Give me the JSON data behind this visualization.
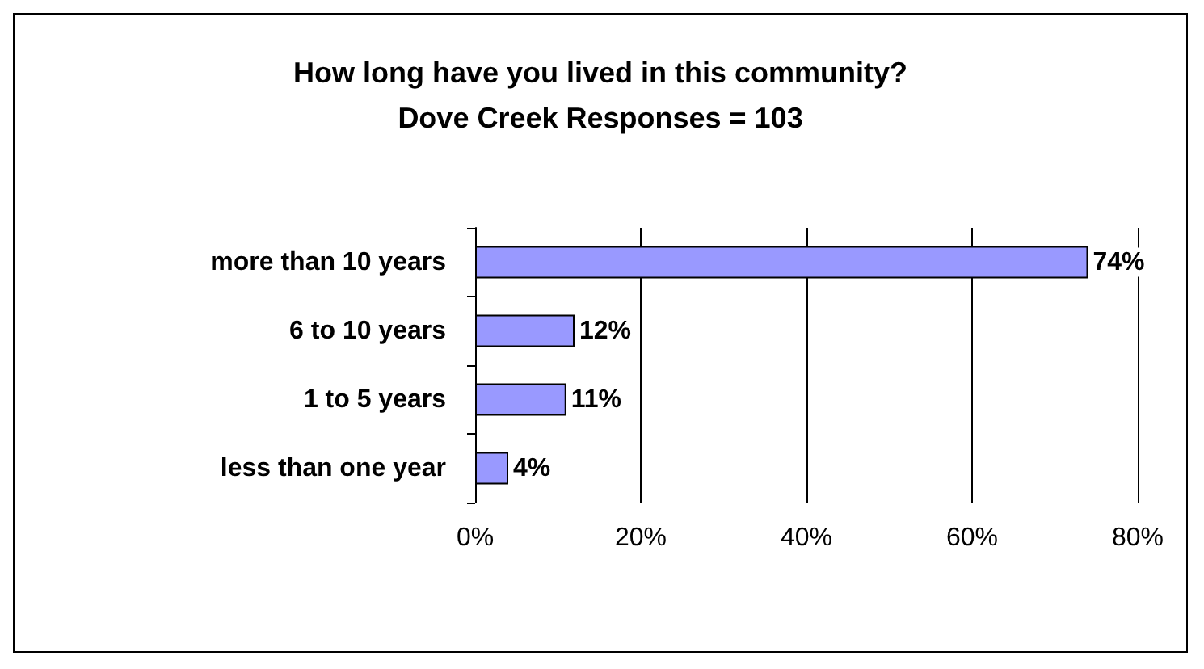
{
  "chart_data": {
    "type": "bar",
    "orientation": "horizontal",
    "title": "How long have you lived in this community?",
    "subtitle": "Dove Creek Responses = 103",
    "categories": [
      "more than 10 years",
      "6 to 10 years",
      "1 to 5 years",
      "less than one year"
    ],
    "values": [
      74,
      12,
      11,
      4
    ],
    "color": "#9999ff",
    "value_labels": [
      "74%",
      "12%",
      "11%",
      "4%"
    ],
    "xlim": [
      0,
      80
    ],
    "xticks": [
      {
        "value": 0,
        "label": "0%"
      },
      {
        "value": 20,
        "label": "20%"
      },
      {
        "value": 40,
        "label": "40%"
      },
      {
        "value": 60,
        "label": "60%"
      },
      {
        "value": 80,
        "label": "80%"
      }
    ],
    "grid": "x"
  }
}
